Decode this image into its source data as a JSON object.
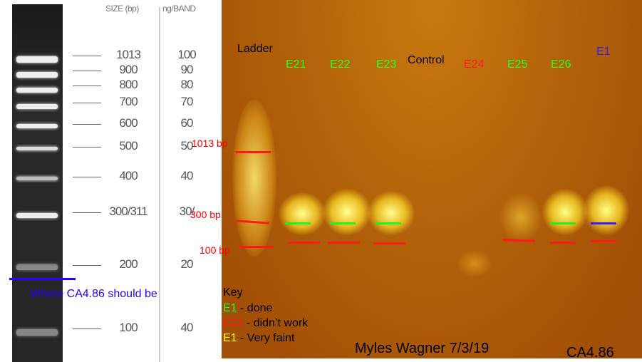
{
  "reference_ladder": {
    "size_header": "SIZE (bp)",
    "ng_header": "ng/BAND",
    "rows": [
      {
        "size": "1013",
        "ng": "100"
      },
      {
        "size": "900",
        "ng": "90"
      },
      {
        "size": "800",
        "ng": "80"
      },
      {
        "size": "700",
        "ng": "70"
      },
      {
        "size": "600",
        "ng": "60"
      },
      {
        "size": "500",
        "ng": "50"
      },
      {
        "size": "400",
        "ng": "40"
      },
      {
        "size": "300/311",
        "ng": "30/"
      },
      {
        "size": "200",
        "ng": "20"
      },
      {
        "size": "100",
        "ng": "40"
      }
    ],
    "expected_note": "Where CA4.86 should be",
    "note_color": "#2a00ff"
  },
  "gel": {
    "lanes": [
      {
        "label": "Ladder",
        "color": "#000000"
      },
      {
        "label": "E21",
        "color": "#22ff22"
      },
      {
        "label": "E22",
        "color": "#22ff22"
      },
      {
        "label": "E23",
        "color": "#22ff22"
      },
      {
        "label": "Control",
        "color": "#000000"
      },
      {
        "label": "E24",
        "color": "#ff1a1a"
      },
      {
        "label": "E25",
        "color": "#22ff22"
      },
      {
        "label": "E26",
        "color": "#22ff22"
      },
      {
        "label": "E1",
        "color": "#3a1aff"
      }
    ],
    "size_markers": [
      "1013 bp",
      "300 bp",
      "100 bp"
    ],
    "key": {
      "title": "Key",
      "items": [
        {
          "code": "E1",
          "text": " - done",
          "color": "#22ff22"
        },
        {
          "code": "E12",
          "text": " - didn’t work",
          "color": "#ff1a1a"
        },
        {
          "code": "E1",
          "text": " - Very faint",
          "color": "#ffff00"
        }
      ]
    },
    "author": "Myles Wagner 7/3/19",
    "gene": "CA4.86"
  }
}
